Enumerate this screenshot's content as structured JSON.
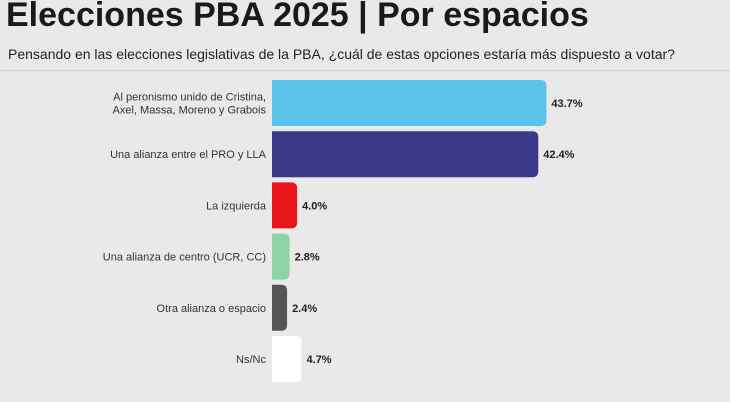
{
  "header": {
    "title": "Elecciones PBA 2025 | Por espacios",
    "subtitle": "Pensando en las elecciones legislativas de la PBA, ¿cuál de estas opciones estaría más dispuesto a votar?"
  },
  "chart_data": {
    "type": "bar",
    "orientation": "horizontal",
    "categories": [
      [
        "Al peronismo unido de Cristina,",
        "Axel, Massa, Moreno y Grabois"
      ],
      [
        "Una alianza entre el PRO y LLA"
      ],
      [
        "La izquierda"
      ],
      [
        "Una alianza de centro (UCR, CC)"
      ],
      [
        "Otra alianza o espacio"
      ],
      [
        "Ns/Nc"
      ]
    ],
    "values": [
      43.7,
      42.4,
      4.0,
      2.8,
      2.4,
      4.7
    ],
    "value_labels": [
      "43.7%",
      "42.4%",
      "4.0%",
      "2.8%",
      "2.4%",
      "4.7%"
    ],
    "colors": [
      "#5bc4e9",
      "#3b3889",
      "#e8161b",
      "#8ed3a2",
      "#555555",
      "#ffffff"
    ],
    "xlim": [
      0,
      45
    ],
    "grid": false,
    "legend": "none"
  }
}
